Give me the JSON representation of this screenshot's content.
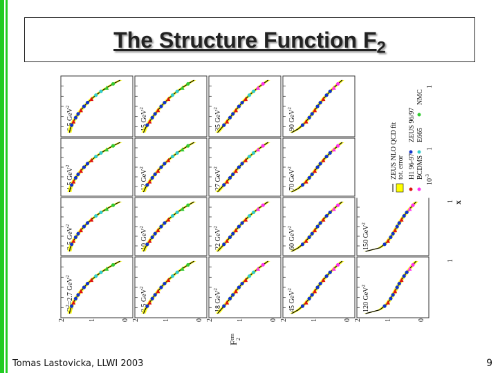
{
  "slide": {
    "title_main": "The Structure Function F",
    "title_sub": "2",
    "footer_author": "Tomas Lastovicka, LLWI 2003",
    "page_number": "9"
  },
  "colors": {
    "accent_bar": "#22cc22",
    "fit_line": "#000000",
    "band": "#ffff00",
    "h1": "#dd1111",
    "zeus": "#1133cc",
    "bcdms": "#ff33ee",
    "e665": "#33cccc",
    "nmc": "#33cc33"
  },
  "chart_data": {
    "type": "scatter",
    "description_labels": {
      "ylabel": "F",
      "ylabel_sup": "em",
      "ylabel_sub": "2",
      "xlabel": "x",
      "x_ticks": [
        "10",
        "-3",
        "1"
      ],
      "y_ticks": [
        "2",
        "1",
        "0"
      ]
    },
    "legend": [
      {
        "name": "ZEUS NLO QCD fit",
        "marker": "line"
      },
      {
        "name": "tot. error",
        "marker": "band"
      },
      {
        "name": "H1 96-97",
        "marker": "triangle"
      },
      {
        "name": "ZEUS 96/97",
        "marker": "circle"
      },
      {
        "name": "BCDMS",
        "marker": "triangle"
      },
      {
        "name": "E665",
        "marker": "square"
      },
      {
        "name": "NMC",
        "marker": "triangle-down"
      }
    ],
    "panels": [
      [
        "6.5 GeV",
        "15 GeV",
        "35 GeV",
        "90 GeV"
      ],
      [
        "4.5 GeV",
        "12 GeV",
        "27 GeV",
        "70 GeV"
      ],
      [
        "3.5 GeV",
        "10 GeV",
        "22 GeV",
        "60 GeV",
        "150 GeV"
      ],
      [
        "Q =2.7 GeV",
        "8.5 GeV",
        "18 GeV",
        "45 GeV",
        "120 GeV"
      ]
    ],
    "panel_unit_sup": "2",
    "panel_first_prefix": "Q",
    "xlim_log10": [
      -5,
      0
    ],
    "ylim": [
      0,
      2
    ]
  }
}
